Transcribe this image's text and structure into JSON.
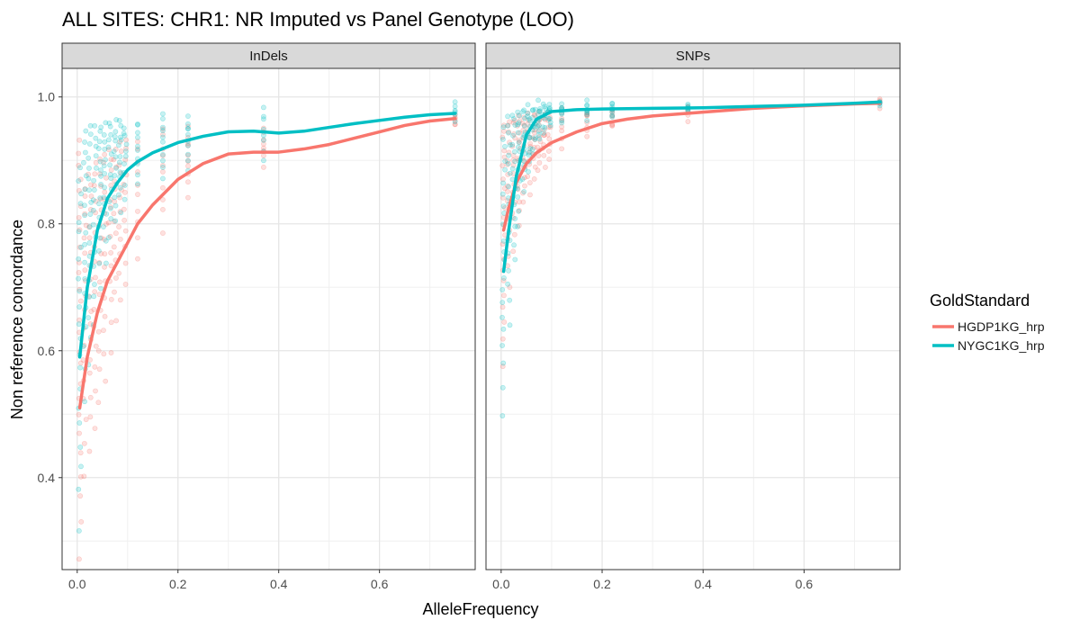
{
  "chart_data": {
    "type": "scatter",
    "title": "ALL SITES: CHR1: NR Imputed vs Panel Genotype (LOO)",
    "xlabel": "AlleleFrequency",
    "ylabel": "Non reference concordance",
    "xlim": [
      -0.03,
      0.79
    ],
    "ylim": [
      0.255,
      1.045
    ],
    "x_ticks": [
      0.0,
      0.2,
      0.4,
      0.6
    ],
    "x_tick_labels": [
      "0.0",
      "0.2",
      "0.4",
      "0.6"
    ],
    "y_ticks": [
      0.4,
      0.6,
      0.8,
      1.0
    ],
    "y_tick_labels": [
      "0.4",
      "0.6",
      "0.8",
      "1.0"
    ],
    "grid": true,
    "legend": {
      "title": "GoldStandard",
      "position": "right",
      "entries": [
        {
          "label": "HGDP1KG_hrp",
          "color": "#F8766D"
        },
        {
          "label": "NYGC1KG_hrp",
          "color": "#00BFC4"
        }
      ]
    },
    "facets": [
      {
        "strip": "InDels",
        "series": [
          {
            "name": "HGDP1KG_hrp",
            "color": "#F8766D",
            "smooth": [
              [
                0.005,
                0.51
              ],
              [
                0.02,
                0.59
              ],
              [
                0.04,
                0.66
              ],
              [
                0.06,
                0.71
              ],
              [
                0.08,
                0.74
              ],
              [
                0.1,
                0.77
              ],
              [
                0.12,
                0.8
              ],
              [
                0.15,
                0.83
              ],
              [
                0.2,
                0.87
              ],
              [
                0.25,
                0.895
              ],
              [
                0.3,
                0.91
              ],
              [
                0.35,
                0.913
              ],
              [
                0.4,
                0.913
              ],
              [
                0.45,
                0.918
              ],
              [
                0.5,
                0.925
              ],
              [
                0.55,
                0.935
              ],
              [
                0.6,
                0.945
              ],
              [
                0.65,
                0.955
              ],
              [
                0.7,
                0.962
              ],
              [
                0.75,
                0.966
              ]
            ],
            "points": [
              {
                "x": 0.005,
                "min": 0.27,
                "max": 0.93,
                "n": 26
              },
              {
                "x": 0.015,
                "min": 0.4,
                "max": 0.86,
                "n": 18
              },
              {
                "x": 0.025,
                "min": 0.44,
                "max": 0.88,
                "n": 18
              },
              {
                "x": 0.035,
                "min": 0.48,
                "max": 0.9,
                "n": 16
              },
              {
                "x": 0.045,
                "min": 0.52,
                "max": 0.9,
                "n": 16
              },
              {
                "x": 0.055,
                "min": 0.55,
                "max": 0.91,
                "n": 16
              },
              {
                "x": 0.065,
                "min": 0.6,
                "max": 0.92,
                "n": 14
              },
              {
                "x": 0.075,
                "min": 0.65,
                "max": 0.92,
                "n": 14
              },
              {
                "x": 0.085,
                "min": 0.68,
                "max": 0.93,
                "n": 12
              },
              {
                "x": 0.095,
                "min": 0.7,
                "max": 0.93,
                "n": 12
              },
              {
                "x": 0.12,
                "min": 0.74,
                "max": 0.93,
                "n": 10
              },
              {
                "x": 0.17,
                "min": 0.79,
                "max": 0.95,
                "n": 10
              },
              {
                "x": 0.22,
                "min": 0.84,
                "max": 0.95,
                "n": 10
              },
              {
                "x": 0.37,
                "min": 0.89,
                "max": 0.95,
                "n": 8
              },
              {
                "x": 0.75,
                "min": 0.955,
                "max": 0.975,
                "n": 6
              }
            ]
          },
          {
            "name": "NYGC1KG_hrp",
            "color": "#00BFC4",
            "smooth": [
              [
                0.005,
                0.59
              ],
              [
                0.02,
                0.7
              ],
              [
                0.04,
                0.79
              ],
              [
                0.06,
                0.84
              ],
              [
                0.08,
                0.865
              ],
              [
                0.1,
                0.885
              ],
              [
                0.12,
                0.898
              ],
              [
                0.15,
                0.912
              ],
              [
                0.2,
                0.928
              ],
              [
                0.25,
                0.938
              ],
              [
                0.3,
                0.945
              ],
              [
                0.35,
                0.946
              ],
              [
                0.4,
                0.943
              ],
              [
                0.45,
                0.946
              ],
              [
                0.5,
                0.952
              ],
              [
                0.55,
                0.958
              ],
              [
                0.6,
                0.963
              ],
              [
                0.65,
                0.968
              ],
              [
                0.7,
                0.972
              ],
              [
                0.75,
                0.974
              ]
            ],
            "points": [
              {
                "x": 0.005,
                "min": 0.32,
                "max": 0.89,
                "n": 22
              },
              {
                "x": 0.015,
                "min": 0.52,
                "max": 0.95,
                "n": 18
              },
              {
                "x": 0.025,
                "min": 0.58,
                "max": 0.955,
                "n": 18
              },
              {
                "x": 0.035,
                "min": 0.64,
                "max": 0.955,
                "n": 16
              },
              {
                "x": 0.045,
                "min": 0.7,
                "max": 0.955,
                "n": 16
              },
              {
                "x": 0.055,
                "min": 0.74,
                "max": 0.955,
                "n": 14
              },
              {
                "x": 0.065,
                "min": 0.78,
                "max": 0.96,
                "n": 14
              },
              {
                "x": 0.075,
                "min": 0.8,
                "max": 0.96,
                "n": 12
              },
              {
                "x": 0.085,
                "min": 0.82,
                "max": 0.96,
                "n": 12
              },
              {
                "x": 0.095,
                "min": 0.84,
                "max": 0.955,
                "n": 10
              },
              {
                "x": 0.12,
                "min": 0.86,
                "max": 0.96,
                "n": 10
              },
              {
                "x": 0.17,
                "min": 0.87,
                "max": 0.97,
                "n": 10
              },
              {
                "x": 0.22,
                "min": 0.88,
                "max": 0.97,
                "n": 10
              },
              {
                "x": 0.37,
                "min": 0.9,
                "max": 0.98,
                "n": 8
              },
              {
                "x": 0.75,
                "min": 0.965,
                "max": 0.99,
                "n": 6
              }
            ]
          }
        ]
      },
      {
        "strip": "SNPs",
        "series": [
          {
            "name": "HGDP1KG_hrp",
            "color": "#F8766D",
            "smooth": [
              [
                0.005,
                0.79
              ],
              [
                0.015,
                0.825
              ],
              [
                0.03,
                0.865
              ],
              [
                0.05,
                0.895
              ],
              [
                0.07,
                0.912
              ],
              [
                0.1,
                0.928
              ],
              [
                0.15,
                0.945
              ],
              [
                0.2,
                0.958
              ],
              [
                0.25,
                0.965
              ],
              [
                0.3,
                0.97
              ],
              [
                0.4,
                0.976
              ],
              [
                0.5,
                0.982
              ],
              [
                0.6,
                0.986
              ],
              [
                0.7,
                0.989
              ],
              [
                0.75,
                0.99
              ]
            ],
            "points": [
              {
                "x": 0.005,
                "min": 0.58,
                "max": 0.96,
                "n": 22
              },
              {
                "x": 0.015,
                "min": 0.7,
                "max": 0.965,
                "n": 18
              },
              {
                "x": 0.025,
                "min": 0.76,
                "max": 0.965,
                "n": 16
              },
              {
                "x": 0.035,
                "min": 0.8,
                "max": 0.97,
                "n": 16
              },
              {
                "x": 0.045,
                "min": 0.83,
                "max": 0.97,
                "n": 14
              },
              {
                "x": 0.055,
                "min": 0.85,
                "max": 0.97,
                "n": 14
              },
              {
                "x": 0.065,
                "min": 0.87,
                "max": 0.975,
                "n": 12
              },
              {
                "x": 0.075,
                "min": 0.88,
                "max": 0.975,
                "n": 12
              },
              {
                "x": 0.085,
                "min": 0.89,
                "max": 0.975,
                "n": 10
              },
              {
                "x": 0.095,
                "min": 0.9,
                "max": 0.975,
                "n": 10
              },
              {
                "x": 0.12,
                "min": 0.92,
                "max": 0.98,
                "n": 8
              },
              {
                "x": 0.17,
                "min": 0.94,
                "max": 0.98,
                "n": 8
              },
              {
                "x": 0.22,
                "min": 0.95,
                "max": 0.98,
                "n": 8
              },
              {
                "x": 0.37,
                "min": 0.965,
                "max": 0.985,
                "n": 6
              },
              {
                "x": 0.75,
                "min": 0.985,
                "max": 0.995,
                "n": 5
              }
            ]
          },
          {
            "name": "NYGC1KG_hrp",
            "color": "#00BFC4",
            "smooth": [
              [
                0.005,
                0.725
              ],
              [
                0.015,
                0.79
              ],
              [
                0.03,
                0.875
              ],
              [
                0.05,
                0.94
              ],
              [
                0.07,
                0.965
              ],
              [
                0.1,
                0.977
              ],
              [
                0.15,
                0.98
              ],
              [
                0.2,
                0.981
              ],
              [
                0.3,
                0.982
              ],
              [
                0.4,
                0.983
              ],
              [
                0.5,
                0.985
              ],
              [
                0.6,
                0.987
              ],
              [
                0.7,
                0.99
              ],
              [
                0.75,
                0.992
              ]
            ],
            "points": [
              {
                "x": 0.005,
                "min": 0.5,
                "max": 0.95,
                "n": 22
              },
              {
                "x": 0.015,
                "min": 0.64,
                "max": 0.97,
                "n": 18
              },
              {
                "x": 0.025,
                "min": 0.74,
                "max": 0.975,
                "n": 16
              },
              {
                "x": 0.035,
                "min": 0.8,
                "max": 0.98,
                "n": 16
              },
              {
                "x": 0.045,
                "min": 0.85,
                "max": 0.98,
                "n": 14
              },
              {
                "x": 0.055,
                "min": 0.88,
                "max": 0.985,
                "n": 14
              },
              {
                "x": 0.065,
                "min": 0.91,
                "max": 0.985,
                "n": 12
              },
              {
                "x": 0.075,
                "min": 0.93,
                "max": 0.99,
                "n": 12
              },
              {
                "x": 0.085,
                "min": 0.94,
                "max": 0.99,
                "n": 10
              },
              {
                "x": 0.095,
                "min": 0.95,
                "max": 0.99,
                "n": 10
              },
              {
                "x": 0.12,
                "min": 0.96,
                "max": 0.99,
                "n": 8
              },
              {
                "x": 0.17,
                "min": 0.965,
                "max": 0.99,
                "n": 8
              },
              {
                "x": 0.22,
                "min": 0.97,
                "max": 0.99,
                "n": 8
              },
              {
                "x": 0.37,
                "min": 0.975,
                "max": 0.99,
                "n": 6
              },
              {
                "x": 0.75,
                "min": 0.985,
                "max": 0.995,
                "n": 5
              }
            ]
          }
        ]
      }
    ]
  }
}
